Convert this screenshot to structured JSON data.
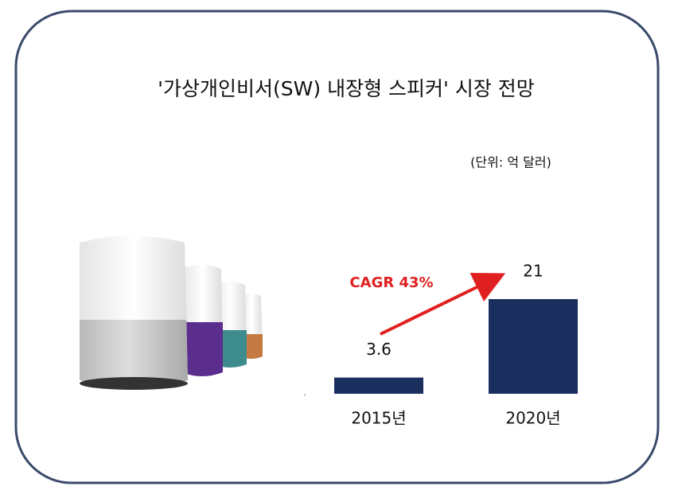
{
  "chart_data": {
    "type": "bar",
    "title": "'가상개인비서(SW) 내장형 스피커'  시장 전망",
    "subtitle": "(단위: 억 달러)",
    "annotation": "CAGR 43%",
    "categories": [
      "2015년",
      "2020년"
    ],
    "values": [
      3.6,
      21
    ],
    "color": "#1b2f5e"
  }
}
